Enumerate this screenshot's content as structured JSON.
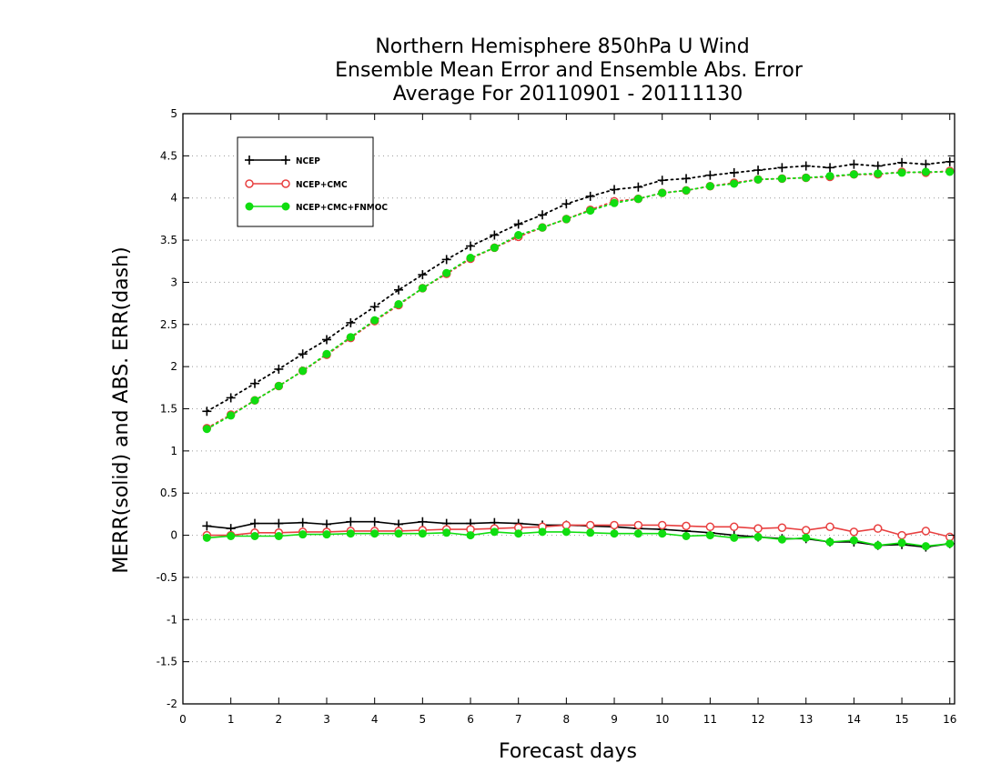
{
  "chart_data": {
    "type": "line",
    "title": [
      "Northern Hemisphere 850hPa U Wind",
      "Ensemble Mean Error and Ensemble Abs. Error",
      "Average For 20110901 - 20111130"
    ],
    "xlabel": "Forecast days",
    "ylabel": "MERR(solid) and ABS. ERR(dash)",
    "xlim": [
      0,
      16.1
    ],
    "ylim": [
      -2,
      5
    ],
    "xticks": [
      0,
      1,
      2,
      3,
      4,
      5,
      6,
      7,
      8,
      9,
      10,
      11,
      12,
      13,
      14,
      15,
      16
    ],
    "yticks": [
      -2,
      -1.5,
      -1,
      -0.5,
      0,
      0.5,
      1,
      1.5,
      2,
      2.5,
      3,
      3.5,
      4,
      4.5,
      5
    ],
    "ytick_labels": [
      "-2",
      "-1.5",
      "-1",
      "-0.5",
      "0",
      "0.5",
      "1",
      "1.5",
      "2",
      "2.5",
      "3",
      "3.5",
      "4",
      "4.5",
      "5"
    ],
    "grid": "horizontal-dotted",
    "legend_position": "top-left",
    "x": [
      0.5,
      1.0,
      1.5,
      2.0,
      2.5,
      3.0,
      3.5,
      4.0,
      4.5,
      5.0,
      5.5,
      6.0,
      6.5,
      7.0,
      7.5,
      8.0,
      8.5,
      9.0,
      9.5,
      10.0,
      10.5,
      11.0,
      11.5,
      12.0,
      12.5,
      13.0,
      13.5,
      14.0,
      14.5,
      15.0,
      15.5,
      16.0
    ],
    "series": [
      {
        "name": "NCEP",
        "color": "#000000",
        "marker": "plus",
        "mean_error": [
          0.11,
          0.08,
          0.14,
          0.14,
          0.15,
          0.13,
          0.16,
          0.16,
          0.13,
          0.16,
          0.14,
          0.14,
          0.15,
          0.14,
          0.12,
          0.12,
          0.11,
          0.1,
          0.08,
          0.07,
          0.05,
          0.03,
          0.0,
          -0.02,
          -0.04,
          -0.04,
          -0.08,
          -0.08,
          -0.12,
          -0.11,
          -0.14,
          -0.1
        ],
        "abs_error": [
          1.47,
          1.63,
          1.8,
          1.97,
          2.15,
          2.32,
          2.52,
          2.71,
          2.91,
          3.09,
          3.27,
          3.43,
          3.56,
          3.69,
          3.8,
          3.93,
          4.02,
          4.1,
          4.13,
          4.21,
          4.23,
          4.27,
          4.3,
          4.33,
          4.36,
          4.38,
          4.36,
          4.4,
          4.38,
          4.42,
          4.4,
          4.43
        ]
      },
      {
        "name": "NCEP+CMC",
        "color": "#e84040",
        "marker": "open-circle",
        "mean_error": [
          0.0,
          0.0,
          0.03,
          0.03,
          0.04,
          0.04,
          0.05,
          0.05,
          0.05,
          0.06,
          0.07,
          0.07,
          0.08,
          0.09,
          0.1,
          0.12,
          0.12,
          0.12,
          0.12,
          0.12,
          0.11,
          0.1,
          0.1,
          0.08,
          0.09,
          0.06,
          0.1,
          0.04,
          0.08,
          0.0,
          0.05,
          -0.02
        ],
        "abs_error": [
          1.27,
          1.43,
          1.6,
          1.77,
          1.95,
          2.14,
          2.34,
          2.54,
          2.73,
          2.93,
          3.1,
          3.28,
          3.41,
          3.54,
          3.65,
          3.75,
          3.86,
          3.96,
          3.99,
          4.06,
          4.09,
          4.14,
          4.18,
          4.22,
          4.23,
          4.24,
          4.25,
          4.28,
          4.28,
          4.31,
          4.3,
          4.32
        ]
      },
      {
        "name": "NCEP+CMC+FNMOC",
        "color": "#10dd10",
        "marker": "filled-circle",
        "mean_error": [
          -0.03,
          -0.01,
          -0.01,
          -0.01,
          0.01,
          0.01,
          0.02,
          0.02,
          0.02,
          0.02,
          0.03,
          0.0,
          0.04,
          0.02,
          0.04,
          0.04,
          0.03,
          0.02,
          0.02,
          0.02,
          -0.01,
          0.0,
          -0.03,
          -0.02,
          -0.05,
          -0.03,
          -0.08,
          -0.06,
          -0.12,
          -0.09,
          -0.13,
          -0.1
        ],
        "abs_error": [
          1.26,
          1.42,
          1.6,
          1.77,
          1.95,
          2.15,
          2.35,
          2.55,
          2.74,
          2.93,
          3.11,
          3.29,
          3.41,
          3.56,
          3.65,
          3.75,
          3.85,
          3.94,
          3.99,
          4.06,
          4.09,
          4.14,
          4.17,
          4.22,
          4.23,
          4.24,
          4.26,
          4.28,
          4.29,
          4.3,
          4.31,
          4.31
        ]
      }
    ]
  }
}
